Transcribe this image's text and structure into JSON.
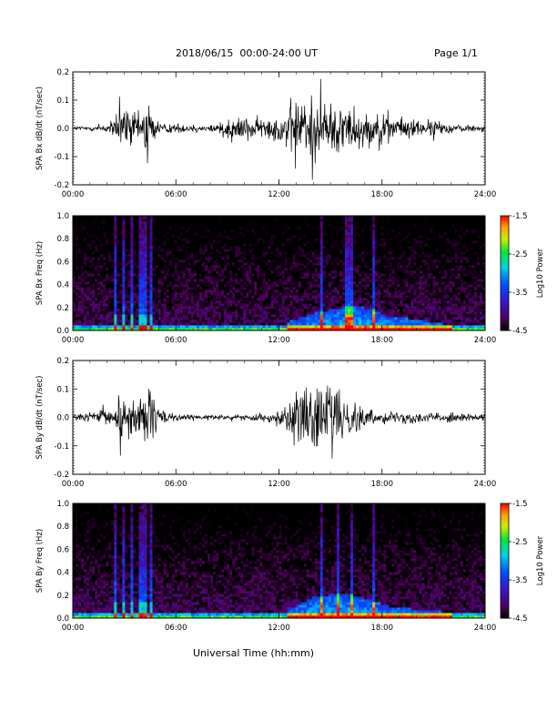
{
  "header": {
    "title": "2018/06/15  00:00-24:00 UT",
    "page": "Page 1/1"
  },
  "x_axis_label": "Universal Time (hh:mm)",
  "x_ticks": [
    "00:00",
    "06:00",
    "12:00",
    "18:00",
    "24:00"
  ],
  "chart_data": [
    {
      "type": "line",
      "ylabel": "SPA Bx dB/dt (nT/sec)",
      "xlim": [
        0,
        24
      ],
      "ylim": [
        -0.2,
        0.2
      ],
      "yticks": [
        "0.2",
        "0.1",
        "0.0",
        "-0.1",
        "-0.2"
      ],
      "envelope": {
        "x_hours": [
          0,
          1,
          2.3,
          2.5,
          3.0,
          3.3,
          4.0,
          4.3,
          4.6,
          5.0,
          6.0,
          8.0,
          8.5,
          9.5,
          10.0,
          11.0,
          12.0,
          12.5,
          13.0,
          13.5,
          14.0,
          14.5,
          15.0,
          15.5,
          16.0,
          16.5,
          17.0,
          17.5,
          18.0,
          19.0,
          20.0,
          21.0,
          22.0,
          23.0,
          24.0
        ],
        "amp": [
          0.01,
          0.012,
          0.03,
          0.08,
          0.1,
          0.09,
          0.06,
          0.18,
          0.08,
          0.03,
          0.02,
          0.015,
          0.04,
          0.06,
          0.05,
          0.045,
          0.06,
          0.1,
          0.14,
          0.15,
          0.14,
          0.13,
          0.11,
          0.12,
          0.1,
          0.09,
          0.08,
          0.07,
          0.06,
          0.05,
          0.04,
          0.035,
          0.02,
          0.015,
          0.015
        ]
      }
    },
    {
      "type": "heatmap",
      "ylabel": "SPA Bx Freq (Hz)",
      "xlim": [
        0,
        24
      ],
      "ylim": [
        0,
        1.0
      ],
      "yticks": [
        "1.0",
        "0.8",
        "0.6",
        "0.4",
        "0.2",
        "0.0"
      ],
      "colorbar": {
        "label": "Log10 Power",
        "ticks": [
          "-1.5",
          "-2.5",
          "-3.5",
          "-4.5"
        ],
        "range": [
          -4.5,
          -1.5
        ]
      },
      "spikes_hours": [
        2.5,
        3.0,
        3.5,
        4.0,
        4.3,
        4.6,
        14.5,
        16.0,
        16.3,
        17.5
      ],
      "band": {
        "x_hours": [
          12.5,
          14.0,
          15.5,
          16.5,
          17.5,
          18.5,
          20.0,
          22.0
        ],
        "freq_hz": [
          0.08,
          0.15,
          0.2,
          0.22,
          0.18,
          0.12,
          0.1,
          0.05
        ]
      }
    },
    {
      "type": "line",
      "ylabel": "SPA By dB/dt (nT/sec)",
      "xlim": [
        0,
        24
      ],
      "ylim": [
        -0.2,
        0.2
      ],
      "yticks": [
        "0.2",
        "0.1",
        "0.0",
        "-0.1",
        "-0.2"
      ],
      "envelope": {
        "x_hours": [
          0,
          1,
          2.3,
          2.5,
          3.0,
          3.3,
          4.0,
          4.3,
          4.6,
          5.0,
          6.0,
          8.0,
          9.0,
          10.0,
          11.0,
          12.0,
          12.5,
          13.0,
          13.5,
          14.0,
          14.5,
          15.0,
          15.5,
          16.0,
          16.5,
          17.0,
          17.5,
          18.0,
          19.0,
          20.0,
          21.0,
          22.0,
          23.0,
          24.0
        ],
        "amp": [
          0.015,
          0.02,
          0.04,
          0.1,
          0.13,
          0.12,
          0.07,
          0.15,
          0.09,
          0.04,
          0.015,
          0.01,
          0.01,
          0.012,
          0.015,
          0.03,
          0.08,
          0.12,
          0.14,
          0.12,
          0.15,
          0.17,
          0.1,
          0.08,
          0.08,
          0.04,
          0.03,
          0.025,
          0.03,
          0.025,
          0.02,
          0.02,
          0.015,
          0.015
        ]
      }
    },
    {
      "type": "heatmap",
      "ylabel": "SPA By Freq (Hz)",
      "xlim": [
        0,
        24
      ],
      "ylim": [
        0,
        1.0
      ],
      "yticks": [
        "1.0",
        "0.8",
        "0.6",
        "0.4",
        "0.2",
        "0.0"
      ],
      "colorbar": {
        "label": "Log10 Power",
        "ticks": [
          "-1.5",
          "-2.5",
          "-3.5",
          "-4.5"
        ],
        "range": [
          -4.5,
          -1.5
        ]
      },
      "spikes_hours": [
        2.5,
        3.0,
        3.5,
        4.0,
        4.3,
        4.6,
        14.5,
        15.5,
        16.3,
        17.5
      ],
      "band": {
        "x_hours": [
          12.5,
          14.0,
          15.5,
          16.5,
          17.5,
          18.5,
          20.0,
          22.0
        ],
        "freq_hz": [
          0.08,
          0.18,
          0.22,
          0.2,
          0.15,
          0.1,
          0.08,
          0.05
        ]
      }
    }
  ]
}
